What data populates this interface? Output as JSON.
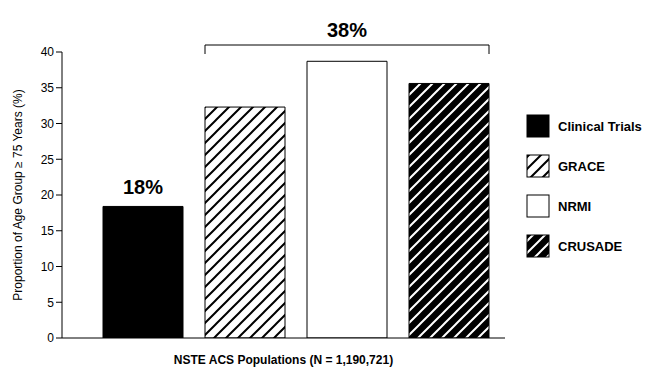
{
  "chart_data": {
    "type": "bar",
    "categories": [
      "Clinical Trials",
      "GRACE",
      "NRMI",
      "CRUSADE"
    ],
    "values": [
      18.4,
      32.3,
      38.7,
      35.6
    ],
    "colors": [
      "#000000",
      "#ffffff",
      "#ffffff",
      "#000000"
    ],
    "ylim": [
      0,
      40
    ],
    "yticks": [
      0,
      5,
      10,
      15,
      20,
      25,
      30,
      35,
      40
    ],
    "x_label": "NSTE ACS Populations (N = 1,190,721)",
    "y_label": "Proportion of Age Group ≥ 75 Years (%)",
    "legend": "right",
    "tick_labels": "y",
    "annotations": [
      {
        "text": "18%",
        "categories": [
          "Clinical Trials"
        ]
      },
      {
        "text": "38%",
        "categories": [
          "GRACE",
          "NRMI",
          "CRUSADE"
        ]
      }
    ]
  }
}
